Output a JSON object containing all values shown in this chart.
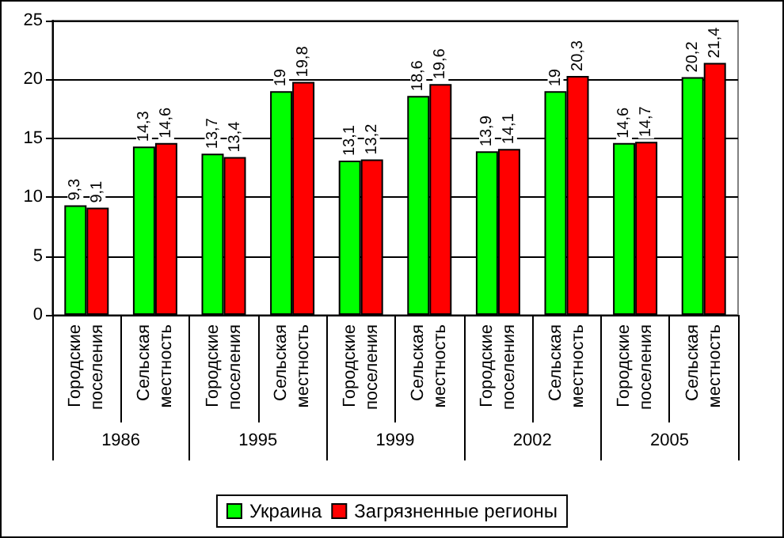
{
  "chart_data": {
    "type": "bar",
    "categories": [
      "Городские поселения",
      "Сельская местность",
      "Городские поселения",
      "Сельская местность",
      "Городские поселения",
      "Сельская местность",
      "Городские поселения",
      "Сельская местность",
      "Городские поселения",
      "Сельская местность"
    ],
    "series": [
      {
        "name": "Украина",
        "color": "#00ff00",
        "values": [
          9.3,
          14.3,
          13.7,
          19,
          13.1,
          18.6,
          13.9,
          19,
          14.6,
          20.2
        ],
        "value_labels": [
          "9,3",
          "14,3",
          "13,7",
          "19",
          "13,1",
          "18,6",
          "13,9",
          "19",
          "14,6",
          "20,2"
        ]
      },
      {
        "name": "Загрязненные регионы",
        "color": "#ff0000",
        "values": [
          9.1,
          14.6,
          13.4,
          19.8,
          13.2,
          19.6,
          14.1,
          20.3,
          14.7,
          21.4
        ],
        "value_labels": [
          "9,1",
          "14,6",
          "13,4",
          "19,8",
          "13,2",
          "19,6",
          "14,1",
          "20,3",
          "14,7",
          "21,4"
        ]
      }
    ],
    "annotations": [
      "1986",
      "1995",
      "1999",
      "2002",
      "2005"
    ],
    "ylim": [
      0,
      25
    ],
    "yticks": [
      0,
      5,
      10,
      15,
      20,
      25
    ],
    "grid": "y",
    "legend": "bottom"
  }
}
